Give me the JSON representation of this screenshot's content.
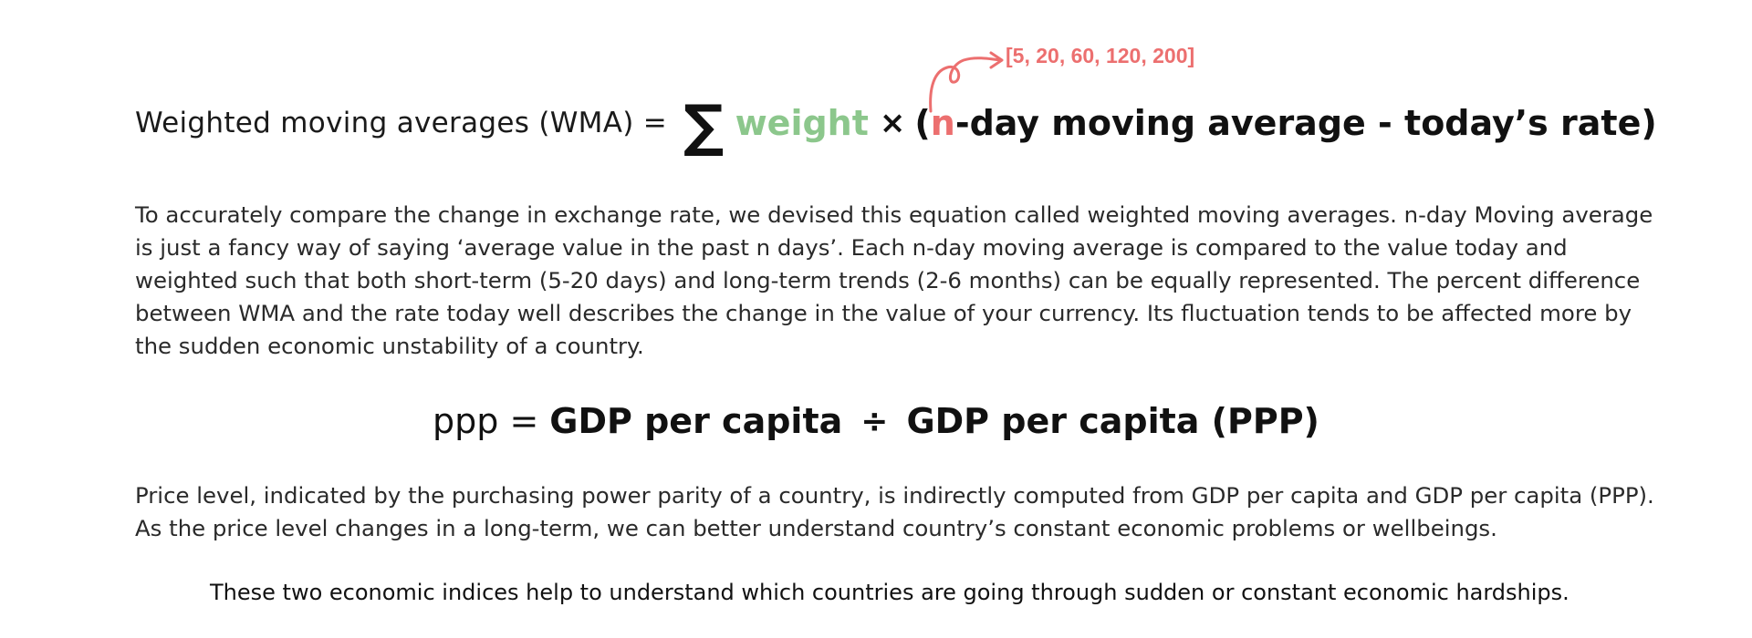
{
  "wma_formula": {
    "label": "Weighted moving averages (WMA) =",
    "sigma": "∑",
    "weight": "weight",
    "times": "×",
    "open_paren": "(",
    "n": "n",
    "rest": "-day moving average -  today’s rate)",
    "annotation": "[5, 20, 60, 120, 200]",
    "colors": {
      "weight": "#8cc78c",
      "accent": "#ec6f6f"
    }
  },
  "wma_description": "To accurately compare the change in exchange rate, we devised this equation called weighted moving averages. n-day Moving average is just a fancy way of saying ‘average value in the past n days’. Each n-day moving average is compared to the value today and weighted such that both short-term (5-20 days) and long-term trends (2-6 months) can be equally represented. The percent difference between WMA and the rate today well describes the change in the value of your currency. Its fluctuation tends to be affected more by the sudden economic unstability of a country.",
  "ppp_formula": {
    "label": "ppp =",
    "left": "GDP per capita",
    "divide": "÷",
    "right": "GDP per capita (PPP)"
  },
  "ppp_description": "Price level, indicated by the purchasing power parity of a country, is indirectly computed from GDP per capita and GDP per capita (PPP). As the price level changes in a long-term, we can better understand country’s constant economic problems or wellbeings.",
  "summary": "These two economic indices help to understand which countries are going through sudden or constant economic hardships."
}
